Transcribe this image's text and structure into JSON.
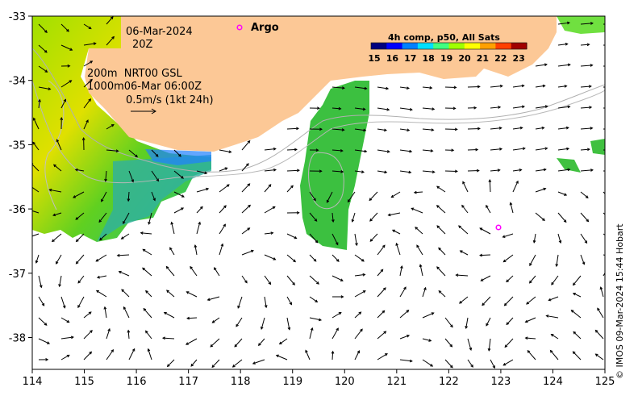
{
  "map": {
    "date_line": "06-Mar-2024",
    "time_line": "20Z",
    "iso_line": "200m  NRT00 GSL",
    "iso_line2": "1000m06-Mar 06:00Z",
    "vector_scale": "0.5m/s (1kt 24h)",
    "argo_label": "Argo",
    "colorbar_title": "4h comp, p50, All Sats",
    "colorbar_ticks": [
      "15",
      "16",
      "17",
      "18",
      "19",
      "20",
      "21",
      "22",
      "23"
    ],
    "colorbar_colors": [
      "#00007f",
      "#0000ff",
      "#0080ff",
      "#00e0ff",
      "#40ff80",
      "#a0ff00",
      "#ffff00",
      "#ffa000",
      "#ff4000",
      "#a00000"
    ],
    "lon_ticks": [
      "114",
      "115",
      "116",
      "117",
      "118",
      "119",
      "120",
      "121",
      "122",
      "123",
      "124",
      "125"
    ],
    "lat_ticks": [
      "-33",
      "-34",
      "-35",
      "-36",
      "-37",
      "-38"
    ],
    "land_color": "#fcc896",
    "argo_color": "#ff00ff",
    "credit": "© IMOS 09-Mar-2024 15:44 Hobart"
  }
}
